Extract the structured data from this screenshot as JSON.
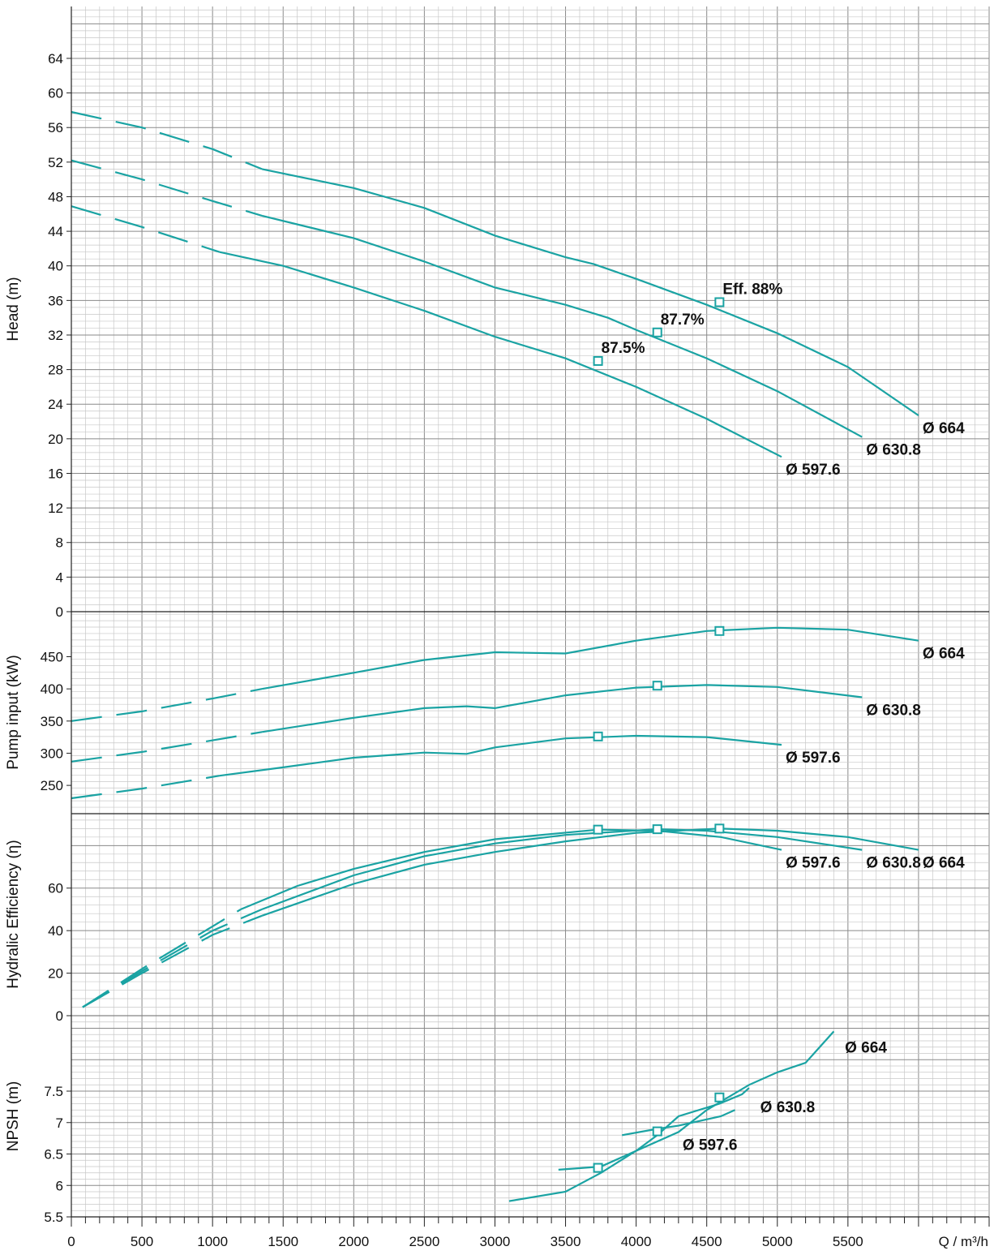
{
  "colors": {
    "curve": "#1aa3a3",
    "grid_major": "#8a8a8a",
    "grid_minor": "#c8c8c8",
    "axis": "#222222"
  },
  "chart_data": [
    {
      "type": "line",
      "panel": "head",
      "ylabel": "Head (m)",
      "ylim": [
        0,
        70
      ],
      "yticks": [
        0,
        4,
        8,
        12,
        16,
        20,
        24,
        28,
        32,
        36,
        40,
        44,
        48,
        52,
        56,
        60,
        64
      ],
      "ytick_labels": [
        "0",
        "4",
        "8",
        "12",
        "16",
        "20",
        "24",
        "28",
        "32",
        "36",
        "40",
        "44",
        "48",
        "52",
        "56",
        "60",
        "64"
      ],
      "grid": true,
      "series": [
        {
          "name": "Ø 664",
          "dashed_until_x": 1350,
          "x": [
            0,
            500,
            1000,
            1350,
            2000,
            2500,
            3000,
            3500,
            3700,
            4000,
            4500,
            5000,
            5500,
            6000
          ],
          "y": [
            57.8,
            56,
            53.5,
            51.2,
            49,
            46.7,
            43.5,
            41,
            40.2,
            38.5,
            35.5,
            32.2,
            28.3,
            22.7
          ]
        },
        {
          "name": "Ø 630.8",
          "dashed_until_x": 1350,
          "x": [
            0,
            500,
            1000,
            1350,
            2000,
            2500,
            3000,
            3500,
            3800,
            4000,
            4500,
            5000,
            5600
          ],
          "y": [
            52.2,
            50,
            47.5,
            45.8,
            43.2,
            40.5,
            37.5,
            35.5,
            34,
            32.6,
            29.3,
            25.5,
            20.2
          ]
        },
        {
          "name": "Ø 597.6",
          "dashed_until_x": 1050,
          "x": [
            0,
            500,
            1050,
            1500,
            2000,
            2500,
            3000,
            3500,
            4000,
            4500,
            5030
          ],
          "y": [
            46.9,
            44.5,
            41.6,
            40,
            37.5,
            34.8,
            31.8,
            29.3,
            26,
            22.3,
            17.9
          ]
        }
      ],
      "points": [
        {
          "x": 4590,
          "y": 35.8,
          "label": "Eff. 88%"
        },
        {
          "x": 4150,
          "y": 32.3,
          "label": "87.7%"
        },
        {
          "x": 3730,
          "y": 29,
          "label": "87.5%"
        }
      ],
      "curve_labels": [
        {
          "text": "Ø 664",
          "at_x": 6000,
          "at_y": 22.7
        },
        {
          "text": "Ø 630.8",
          "at_x": 5600,
          "at_y": 20.2
        },
        {
          "text": "Ø 597.6",
          "at_x": 5030,
          "at_y": 17.9
        }
      ]
    },
    {
      "type": "line",
      "panel": "power",
      "ylabel": "Pump input (kW)",
      "ylim": [
        206,
        520
      ],
      "yticks": [
        250,
        300,
        350,
        400,
        450
      ],
      "ytick_labels": [
        "250",
        "300",
        "350",
        "400",
        "450"
      ],
      "grid": true,
      "series": [
        {
          "name": "Ø 664",
          "dashed_until_x": 1350,
          "x": [
            0,
            500,
            1000,
            1350,
            2000,
            2500,
            3000,
            3500,
            4000,
            4500,
            5000,
            5500,
            6000
          ],
          "y": [
            350,
            365,
            385,
            400,
            425,
            445,
            457,
            455,
            475,
            490,
            495,
            492,
            475
          ]
        },
        {
          "name": "Ø 630.8",
          "dashed_until_x": 1350,
          "x": [
            0,
            500,
            1000,
            1350,
            2000,
            2500,
            2800,
            3000,
            3500,
            4000,
            4500,
            5000,
            5600
          ],
          "y": [
            287,
            302,
            320,
            333,
            355,
            370,
            373,
            370,
            390,
            402,
            406,
            403,
            387
          ]
        },
        {
          "name": "Ø 597.6",
          "dashed_until_x": 1050,
          "x": [
            0,
            500,
            1050,
            1500,
            2000,
            2500,
            2800,
            3000,
            3500,
            4000,
            4500,
            5030
          ],
          "y": [
            230,
            245,
            265,
            278,
            293,
            301,
            299,
            309,
            323,
            327,
            325,
            313
          ]
        }
      ],
      "points": [
        {
          "x": 4590,
          "y": 490
        },
        {
          "x": 4150,
          "y": 405
        },
        {
          "x": 3730,
          "y": 326
        }
      ],
      "curve_labels": [
        {
          "text": "Ø 664",
          "at_x": 6000,
          "at_y": 475
        },
        {
          "text": "Ø 630.8",
          "at_x": 5600,
          "at_y": 387
        },
        {
          "text": "Ø 597.6",
          "at_x": 5030,
          "at_y": 313
        }
      ]
    },
    {
      "type": "line",
      "panel": "efficiency",
      "ylabel": "Hydralic Efficiency (η)",
      "ylim": [
        0,
        95
      ],
      "yticks": [
        0,
        20,
        40,
        60
      ],
      "ytick_labels": [
        "0",
        "20",
        "40",
        "60"
      ],
      "grid": true,
      "series": [
        {
          "name": "Ø 664",
          "dashed_until_x": 1350,
          "x": [
            80,
            500,
            1000,
            1350,
            2000,
            2500,
            3000,
            3500,
            4000,
            4590,
            5000,
            5500,
            6000
          ],
          "y": [
            4,
            20,
            38,
            47,
            62,
            71,
            77,
            82,
            86,
            88,
            87,
            84,
            78
          ]
        },
        {
          "name": "Ø 630.8",
          "dashed_until_x": 1350,
          "x": [
            80,
            500,
            1000,
            1350,
            2000,
            2500,
            3000,
            3500,
            4150,
            4500,
            5000,
            5600
          ],
          "y": [
            4,
            21,
            40,
            50,
            66,
            75,
            81,
            85,
            87.7,
            87,
            84,
            78
          ]
        },
        {
          "name": "Ø 597.6",
          "dashed_until_x": 1200,
          "x": [
            80,
            500,
            1000,
            1200,
            1600,
            2000,
            2500,
            3000,
            3730,
            4150,
            4600,
            5030
          ],
          "y": [
            4,
            22,
            42,
            50,
            61,
            69,
            77,
            83,
            87.5,
            87,
            84,
            78
          ]
        }
      ],
      "points": [
        {
          "x": 3730,
          "y": 87.5
        },
        {
          "x": 4150,
          "y": 87.7
        },
        {
          "x": 4590,
          "y": 88
        }
      ],
      "curve_labels": [
        {
          "text": "Ø 597.6",
          "at_x": 5030,
          "at_y": 78
        },
        {
          "text": "Ø 630.8",
          "at_x": 5600,
          "at_y": 78
        },
        {
          "text": "Ø 664",
          "at_x": 6000,
          "at_y": 78
        }
      ]
    },
    {
      "type": "line",
      "panel": "npsh",
      "ylabel": "NPSH (m)",
      "xlabel": "Q / m³/h",
      "ylim": [
        5.5,
        8.7
      ],
      "yticks": [
        5.5,
        6,
        6.5,
        7,
        7.5
      ],
      "ytick_labels": [
        "5.5",
        "6",
        "6.5",
        "7",
        "7.5"
      ],
      "xlim": [
        0,
        6500
      ],
      "xticks": [
        0,
        500,
        1000,
        1500,
        2000,
        2500,
        3000,
        3500,
        4000,
        4500,
        5000,
        5500
      ],
      "xtick_labels": [
        "0",
        "500",
        "1000",
        "1500",
        "2000",
        "2500",
        "3000",
        "3500",
        "4000",
        "4500",
        "5000",
        "5500"
      ],
      "grid": true,
      "series": [
        {
          "name": "Ø 664",
          "x": [
            3100,
            3500,
            3750,
            4000,
            4300,
            4500,
            4800,
            5000,
            5200,
            5400
          ],
          "y": [
            5.75,
            5.9,
            6.2,
            6.55,
            6.85,
            7.2,
            7.6,
            7.8,
            7.95,
            8.45
          ]
        },
        {
          "name": "Ø 630.8",
          "x": [
            3450,
            3750,
            4000,
            4150,
            4300,
            4590,
            4750,
            4800
          ],
          "y": [
            6.25,
            6.3,
            6.55,
            6.8,
            7.1,
            7.3,
            7.45,
            7.55
          ]
        },
        {
          "name": "Ø 597.6",
          "x": [
            3900,
            4150,
            4300,
            4600,
            4700
          ],
          "y": [
            6.8,
            6.9,
            6.95,
            7.1,
            7.2
          ]
        }
      ],
      "points": [
        {
          "x": 3730,
          "y": 6.28
        },
        {
          "x": 4150,
          "y": 6.86
        },
        {
          "x": 4590,
          "y": 7.4
        }
      ],
      "curve_labels": [
        {
          "text": "Ø 664",
          "at_x": 5450,
          "at_y": 8.4
        },
        {
          "text": "Ø 630.8",
          "at_x": 4850,
          "at_y": 7.45
        },
        {
          "text": "Ø 597.6",
          "at_x": 4300,
          "at_y": 6.85
        }
      ]
    }
  ]
}
